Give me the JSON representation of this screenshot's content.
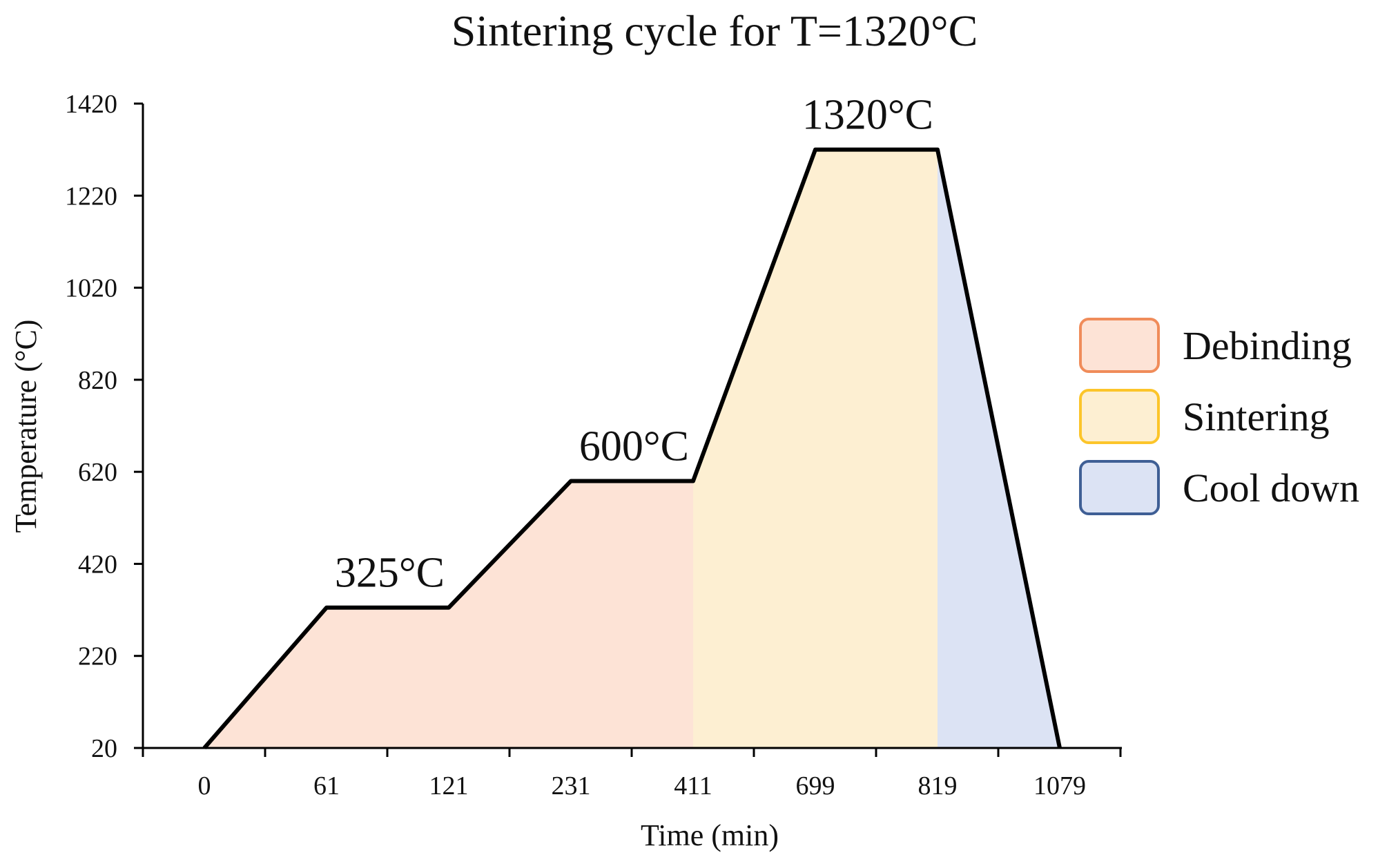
{
  "chart_data": {
    "type": "area",
    "title": "Sintering cycle for T=1320°C",
    "xlabel": "Time (min)",
    "ylabel": "Temperature (°C)",
    "x_ticks": [
      "0",
      "61",
      "121",
      "231",
      "411",
      "699",
      "819",
      "1079"
    ],
    "y_ticks": [
      20,
      220,
      420,
      620,
      820,
      1020,
      1220,
      1420
    ],
    "ylim": [
      20,
      1420
    ],
    "profile": [
      {
        "x": "0",
        "temp": 20
      },
      {
        "x": "61",
        "temp": 325
      },
      {
        "x": "121",
        "temp": 325
      },
      {
        "x": "231",
        "temp": 600
      },
      {
        "x": "411",
        "temp": 600
      },
      {
        "x": "699",
        "temp": 1320
      },
      {
        "x": "819",
        "temp": 1320
      },
      {
        "x": "1079",
        "temp": 20
      }
    ],
    "phases": [
      {
        "name": "Debinding",
        "from": "0",
        "to": "411",
        "fill": "#fde3d6",
        "border": "#f08c5a"
      },
      {
        "name": "Sintering",
        "from": "411",
        "to": "819",
        "fill": "#fdefd2",
        "border": "#fcc52a"
      },
      {
        "name": "Cool down",
        "from": "819",
        "to": "1079",
        "fill": "#dce3f4",
        "border": "#3f5f95"
      }
    ],
    "annotations": [
      {
        "text": "325°C",
        "at": "121",
        "temp": 325
      },
      {
        "text": "600°C",
        "at": "411",
        "temp": 600
      },
      {
        "text": "1320°C",
        "at": "819",
        "temp": 1320
      }
    ],
    "legend_position": "right",
    "line_color": "#000000"
  }
}
